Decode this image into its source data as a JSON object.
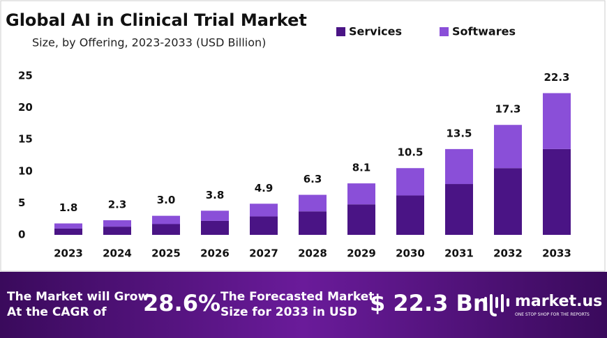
{
  "chart_data": {
    "type": "stacked-bar",
    "title": "Global AI in Clinical Trial Market",
    "subtitle": "Size, by Offering, 2023-2033 (USD Billion)",
    "categories": [
      "2023",
      "2024",
      "2025",
      "2026",
      "2027",
      "2028",
      "2029",
      "2030",
      "2031",
      "2032",
      "2033"
    ],
    "series": [
      {
        "name": "Services",
        "color": "#4a1485",
        "values": [
          1.0,
          1.3,
          1.7,
          2.2,
          2.9,
          3.7,
          4.8,
          6.2,
          8.0,
          10.5,
          13.5
        ]
      },
      {
        "name": "Softwares",
        "color": "#8a4fd8",
        "values": [
          0.8,
          1.0,
          1.3,
          1.6,
          2.0,
          2.6,
          3.3,
          4.3,
          5.5,
          6.8,
          8.8
        ]
      }
    ],
    "totals": {
      "values": [
        1.8,
        2.3,
        3.0,
        3.8,
        4.9,
        6.3,
        8.1,
        10.5,
        13.5,
        17.3,
        22.3
      ],
      "value_labels": [
        "1.8",
        "2.3",
        "3.0",
        "3.8",
        "4.9",
        "6.3",
        "8.1",
        "10.5",
        "13.5",
        "17.3",
        "22.3"
      ]
    },
    "ylim": [
      0,
      25
    ],
    "yticks": [
      0,
      5,
      10,
      15,
      20,
      25
    ],
    "grid": false,
    "legend": "top-right"
  },
  "banner": {
    "cagr_text": [
      "The Market will Grow",
      "At the CAGR of"
    ],
    "cagr": "28.6%",
    "forecast_text": [
      "The Forecasted Market",
      "Size for 2033 in USD"
    ],
    "forecast": "$ 22.3 Bn",
    "brand": "market.us",
    "tagline": "ONE STOP SHOP FOR THE REPORTS"
  }
}
